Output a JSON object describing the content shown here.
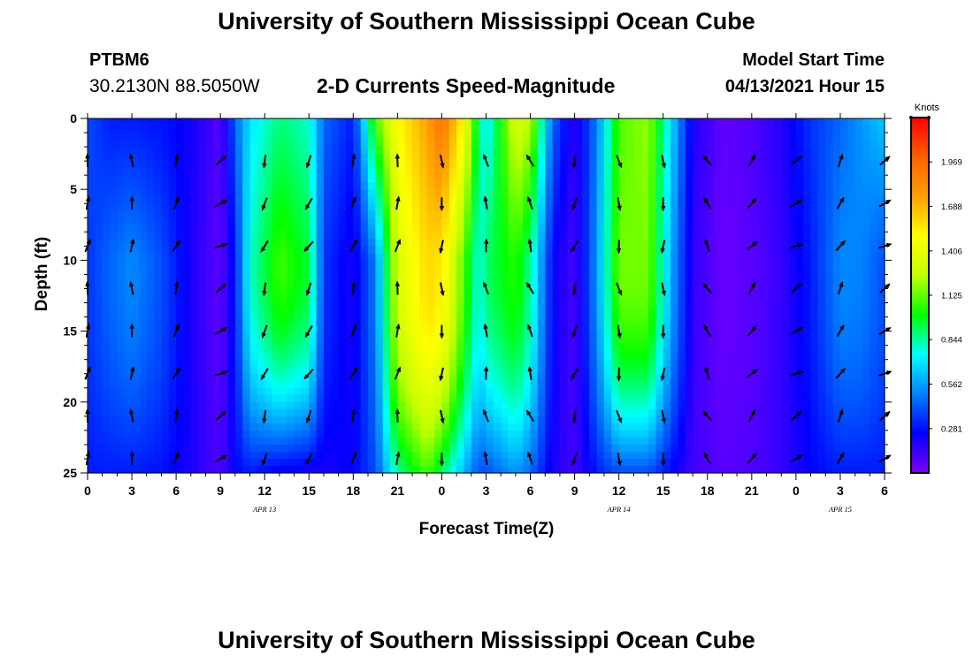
{
  "page": {
    "title_top": "University of Southern Mississippi Ocean Cube",
    "title_bottom": "University of Southern Mississippi Ocean Cube",
    "station_id": "PTBM6",
    "station_coords": "30.2130N  88.5050W",
    "subtitle": "2-D Currents Speed-Magnitude",
    "model_start_label": "Model Start Time",
    "model_start_value": "04/13/2021 Hour 15"
  },
  "chart_data": {
    "type": "heatmap",
    "title": "2-D Currents Speed-Magnitude",
    "xlabel": "Forecast Time(Z)",
    "ylabel": "Depth (ft)",
    "x_ticks": [
      "0",
      "3",
      "6",
      "9",
      "12",
      "15",
      "18",
      "21",
      "0",
      "3",
      "6",
      "9",
      "12",
      "15",
      "18",
      "21",
      "0",
      "3",
      "6"
    ],
    "x_range_hours": [
      0,
      54
    ],
    "date_labels": [
      {
        "hour": 12,
        "text": "APR  13"
      },
      {
        "hour": 36,
        "text": "APR  14"
      },
      {
        "hour": 51,
        "text": "APR  15"
      }
    ],
    "y_ticks": [
      0,
      5,
      10,
      15,
      20,
      25
    ],
    "ylim": [
      0,
      25
    ],
    "y_inverted": true,
    "colorbar": {
      "units": "Knots",
      "min": 0,
      "max": 2.25,
      "ticks": [
        0.281,
        0.562,
        0.844,
        1.125,
        1.406,
        1.688,
        1.969
      ],
      "tick_labels": [
        "0.281",
        "0.562",
        "0.844",
        "1.125",
        "1.406",
        "1.688",
        "1.969"
      ],
      "colors": [
        "#8000ff",
        "#0000ff",
        "#0080ff",
        "#00ffff",
        "#00ff00",
        "#c0ff00",
        "#ffff00",
        "#ffa000",
        "#ff6000",
        "#ff0000"
      ]
    },
    "speed_profile_knots": [
      {
        "hour": 0,
        "top": 0.4,
        "mid": 0.35,
        "bottom": 0.3
      },
      {
        "hour": 1.5,
        "top": 0.3,
        "mid": 0.45,
        "bottom": 0.3
      },
      {
        "hour": 3,
        "top": 0.3,
        "mid": 0.52,
        "bottom": 0.3
      },
      {
        "hour": 5,
        "top": 0.28,
        "mid": 0.4,
        "bottom": 0.28
      },
      {
        "hour": 7,
        "top": 0.22,
        "mid": 0.2,
        "bottom": 0.2
      },
      {
        "hour": 9,
        "top": 0.08,
        "mid": 0.06,
        "bottom": 0.1
      },
      {
        "hour": 10,
        "top": 0.45,
        "mid": 0.3,
        "bottom": 0.25
      },
      {
        "hour": 11,
        "top": 0.7,
        "mid": 0.8,
        "bottom": 0.3
      },
      {
        "hour": 13,
        "top": 0.88,
        "mid": 1.08,
        "bottom": 0.22
      },
      {
        "hour": 15,
        "top": 0.8,
        "mid": 0.95,
        "bottom": 0.2
      },
      {
        "hour": 16,
        "top": 0.45,
        "mid": 0.35,
        "bottom": 0.2
      },
      {
        "hour": 18,
        "top": 0.3,
        "mid": 0.2,
        "bottom": 0.25
      },
      {
        "hour": 19.5,
        "top": 1.1,
        "mid": 0.5,
        "bottom": 0.4
      },
      {
        "hour": 21,
        "top": 1.5,
        "mid": 1.35,
        "bottom": 0.85
      },
      {
        "hour": 23,
        "top": 1.75,
        "mid": 1.6,
        "bottom": 1.1
      },
      {
        "hour": 24,
        "top": 1.95,
        "mid": 1.55,
        "bottom": 0.9
      },
      {
        "hour": 25.5,
        "top": 1.5,
        "mid": 1.1,
        "bottom": 0.6
      },
      {
        "hour": 26.5,
        "top": 0.9,
        "mid": 0.75,
        "bottom": 0.4
      },
      {
        "hour": 27,
        "top": 0.7,
        "mid": 0.9,
        "bottom": 0.4
      },
      {
        "hour": 29,
        "top": 1.35,
        "mid": 1.05,
        "bottom": 0.55
      },
      {
        "hour": 30,
        "top": 1.25,
        "mid": 0.85,
        "bottom": 0.45
      },
      {
        "hour": 31.5,
        "top": 0.45,
        "mid": 0.25,
        "bottom": 0.2
      },
      {
        "hour": 33,
        "top": 0.15,
        "mid": 0.1,
        "bottom": 0.12
      },
      {
        "hour": 34.5,
        "top": 0.5,
        "mid": 0.55,
        "bottom": 0.3
      },
      {
        "hour": 36,
        "top": 1.1,
        "mid": 1.15,
        "bottom": 0.4
      },
      {
        "hour": 38,
        "top": 1.2,
        "mid": 1.15,
        "bottom": 0.4
      },
      {
        "hour": 39.5,
        "top": 0.7,
        "mid": 0.6,
        "bottom": 0.25
      },
      {
        "hour": 41,
        "top": 0.2,
        "mid": 0.15,
        "bottom": 0.12
      },
      {
        "hour": 43,
        "top": 0.06,
        "mid": 0.05,
        "bottom": 0.08
      },
      {
        "hour": 45,
        "top": 0.1,
        "mid": 0.08,
        "bottom": 0.1
      },
      {
        "hour": 47,
        "top": 0.18,
        "mid": 0.15,
        "bottom": 0.15
      },
      {
        "hour": 49,
        "top": 0.35,
        "mid": 0.3,
        "bottom": 0.25
      },
      {
        "hour": 51,
        "top": 0.45,
        "mid": 0.52,
        "bottom": 0.3
      },
      {
        "hour": 52.5,
        "top": 0.55,
        "mid": 0.5,
        "bottom": 0.3
      },
      {
        "hour": 54,
        "top": 0.65,
        "mid": 0.4,
        "bottom": 0.3
      }
    ],
    "vector_hours": [
      0,
      3,
      6,
      9,
      12,
      15,
      18,
      21,
      24,
      27,
      30,
      33,
      36,
      39,
      42,
      45,
      48,
      51,
      54
    ],
    "vector_depths_ft": [
      3,
      6,
      9,
      12,
      15,
      18,
      21,
      24
    ],
    "vector_direction_deg_by_hour": [
      {
        "hour": 0,
        "dir": 10
      },
      {
        "hour": 3,
        "dir": 0
      },
      {
        "hour": 6,
        "dir": 20
      },
      {
        "hour": 9,
        "dir": 60
      },
      {
        "hour": 12,
        "dir": 200
      },
      {
        "hour": 15,
        "dir": 210
      },
      {
        "hour": 18,
        "dir": 20
      },
      {
        "hour": 21,
        "dir": 10
      },
      {
        "hour": 24,
        "dir": 180
      },
      {
        "hour": 27,
        "dir": 350
      },
      {
        "hour": 30,
        "dir": 340
      },
      {
        "hour": 33,
        "dir": 200
      },
      {
        "hour": 36,
        "dir": 170
      },
      {
        "hour": 39,
        "dir": 180
      },
      {
        "hour": 42,
        "dir": 330
      },
      {
        "hour": 45,
        "dir": 40
      },
      {
        "hour": 48,
        "dir": 60
      },
      {
        "hour": 51,
        "dir": 30
      },
      {
        "hour": 54,
        "dir": 60
      }
    ],
    "series": []
  }
}
